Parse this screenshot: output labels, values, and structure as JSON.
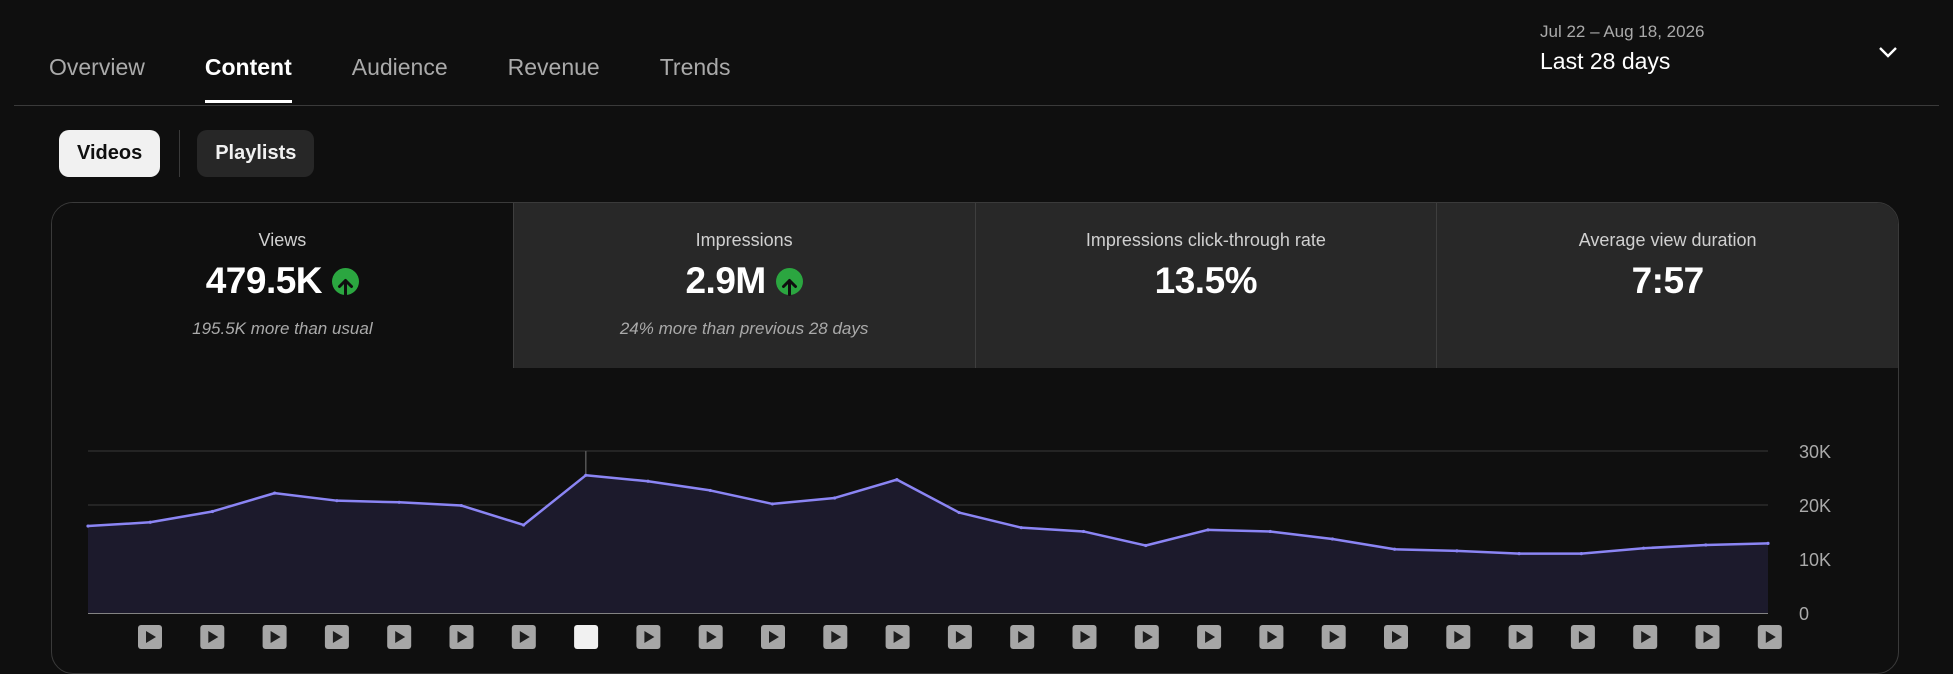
{
  "tabs": [
    {
      "label": "Overview",
      "active": false
    },
    {
      "label": "Content",
      "active": true
    },
    {
      "label": "Audience",
      "active": false
    },
    {
      "label": "Revenue",
      "active": false
    },
    {
      "label": "Trends",
      "active": false
    }
  ],
  "date_range": {
    "sub": "Jul 22 – Aug 18, 2026",
    "main": "Last 28 days",
    "icon": "chevron-down-icon"
  },
  "chips": {
    "videos": "Videos",
    "playlists": "Playlists"
  },
  "metrics": [
    {
      "label": "Views",
      "value": "479.5K",
      "trend": "up",
      "note": "195.5K more than usual"
    },
    {
      "label": "Impressions",
      "value": "2.9M",
      "trend": "up",
      "note": "24% more than previous 28 days"
    },
    {
      "label": "Impressions click-through rate",
      "value": "13.5%",
      "trend": null,
      "note": ""
    },
    {
      "label": "Average view duration",
      "value": "7:57",
      "trend": null,
      "note": ""
    }
  ],
  "colors": {
    "line": "#8b85f4",
    "area": "#1c1a2c",
    "trend_up": "#2ba640",
    "marker": "#a6a6a6",
    "marker_selected": "#f1f1f1"
  },
  "chart_data": {
    "type": "area",
    "series": [
      {
        "values": [
          16100,
          16800,
          18800,
          22200,
          20800,
          20500,
          19900,
          16300,
          25500,
          24400,
          22700,
          20200,
          21300,
          24700,
          18600,
          15800,
          15100,
          12500,
          15400,
          15100,
          13700,
          11800,
          11500,
          11000,
          11000,
          12000,
          12600,
          12900
        ]
      }
    ],
    "y_ticks": [
      "0",
      "10K",
      "20K",
      "30K"
    ],
    "ylim": [
      0,
      30000
    ],
    "grid": true,
    "highlighted_index": 8,
    "x_markers": "video-play-icon per day",
    "selected_marker_index": 8
  }
}
